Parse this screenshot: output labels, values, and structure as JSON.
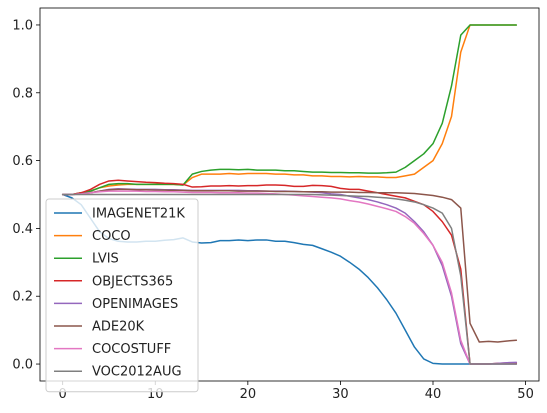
{
  "chart_data": {
    "type": "line",
    "title": "",
    "xlabel": "",
    "ylabel": "",
    "xlim": [
      -2.45,
      51.45
    ],
    "ylim": [
      -0.05,
      1.05
    ],
    "xticks": [
      0,
      10,
      20,
      30,
      40,
      50
    ],
    "yticks": [
      0.0,
      0.2,
      0.4,
      0.6,
      0.8,
      1.0
    ],
    "xtick_labels": [
      "0",
      "10",
      "20",
      "30",
      "40",
      "50"
    ],
    "ytick_labels": [
      "0.0",
      "0.2",
      "0.4",
      "0.6",
      "0.8",
      "1.0"
    ],
    "grid": false,
    "legend_position": "lower-left",
    "x": [
      0,
      1,
      2,
      3,
      4,
      5,
      6,
      7,
      8,
      9,
      10,
      11,
      12,
      13,
      14,
      15,
      16,
      17,
      18,
      19,
      20,
      21,
      22,
      23,
      24,
      25,
      26,
      27,
      28,
      29,
      30,
      31,
      32,
      33,
      34,
      35,
      36,
      37,
      38,
      39,
      40,
      41,
      42,
      43,
      44,
      45,
      46,
      47,
      48,
      49
    ],
    "series": [
      {
        "name": "IMAGENET21K",
        "color": "#1f77b4",
        "values": [
          0.5,
          0.49,
          0.47,
          0.43,
          0.39,
          0.37,
          0.362,
          0.36,
          0.36,
          0.362,
          0.362,
          0.365,
          0.367,
          0.372,
          0.36,
          0.357,
          0.358,
          0.364,
          0.364,
          0.366,
          0.364,
          0.366,
          0.366,
          0.362,
          0.362,
          0.358,
          0.353,
          0.35,
          0.34,
          0.33,
          0.318,
          0.3,
          0.28,
          0.255,
          0.225,
          0.19,
          0.15,
          0.1,
          0.05,
          0.015,
          0.002,
          0.0,
          0.0,
          0.0,
          0.0,
          0.0,
          0.0,
          0.0,
          0.0,
          0.0
        ]
      },
      {
        "name": "COCO",
        "color": "#ff7f0e",
        "values": [
          0.5,
          0.5,
          0.505,
          0.51,
          0.52,
          0.525,
          0.528,
          0.53,
          0.53,
          0.53,
          0.53,
          0.53,
          0.53,
          0.528,
          0.55,
          0.56,
          0.56,
          0.56,
          0.562,
          0.56,
          0.562,
          0.562,
          0.562,
          0.56,
          0.56,
          0.558,
          0.558,
          0.555,
          0.555,
          0.553,
          0.553,
          0.552,
          0.553,
          0.552,
          0.552,
          0.55,
          0.55,
          0.555,
          0.56,
          0.58,
          0.6,
          0.65,
          0.73,
          0.92,
          1.0,
          1.0,
          1.0,
          1.0,
          1.0,
          1.0
        ]
      },
      {
        "name": "LVIS",
        "color": "#2ca02c",
        "values": [
          0.5,
          0.5,
          0.505,
          0.51,
          0.52,
          0.53,
          0.532,
          0.532,
          0.53,
          0.53,
          0.53,
          0.53,
          0.53,
          0.528,
          0.56,
          0.568,
          0.572,
          0.574,
          0.574,
          0.573,
          0.574,
          0.572,
          0.572,
          0.572,
          0.57,
          0.57,
          0.568,
          0.566,
          0.566,
          0.565,
          0.565,
          0.564,
          0.564,
          0.563,
          0.563,
          0.564,
          0.566,
          0.58,
          0.6,
          0.62,
          0.65,
          0.71,
          0.82,
          0.97,
          1.0,
          1.0,
          1.0,
          1.0,
          1.0,
          1.0
        ]
      },
      {
        "name": "OBJECTS365",
        "color": "#d62728",
        "values": [
          0.5,
          0.5,
          0.505,
          0.515,
          0.53,
          0.54,
          0.542,
          0.54,
          0.538,
          0.536,
          0.535,
          0.533,
          0.532,
          0.53,
          0.522,
          0.523,
          0.525,
          0.525,
          0.526,
          0.525,
          0.526,
          0.526,
          0.528,
          0.528,
          0.527,
          0.524,
          0.524,
          0.527,
          0.526,
          0.524,
          0.518,
          0.515,
          0.515,
          0.51,
          0.505,
          0.5,
          0.495,
          0.49,
          0.48,
          0.47,
          0.45,
          0.42,
          0.38,
          0.28,
          0.0,
          0.0,
          0.0,
          0.002,
          0.003,
          0.003
        ]
      },
      {
        "name": "OPENIMAGES",
        "color": "#9467bd",
        "values": [
          0.5,
          0.5,
          0.502,
          0.505,
          0.51,
          0.515,
          0.517,
          0.516,
          0.515,
          0.515,
          0.515,
          0.514,
          0.514,
          0.513,
          0.512,
          0.512,
          0.512,
          0.512,
          0.512,
          0.512,
          0.511,
          0.511,
          0.51,
          0.51,
          0.51,
          0.509,
          0.508,
          0.507,
          0.505,
          0.502,
          0.5,
          0.495,
          0.49,
          0.485,
          0.478,
          0.47,
          0.46,
          0.445,
          0.42,
          0.39,
          0.35,
          0.29,
          0.2,
          0.06,
          0.0,
          0.0,
          0.0,
          0.002,
          0.004,
          0.005
        ]
      },
      {
        "name": "ADE20K",
        "color": "#8c564b",
        "values": [
          0.5,
          0.5,
          0.502,
          0.505,
          0.51,
          0.514,
          0.515,
          0.515,
          0.514,
          0.514,
          0.513,
          0.513,
          0.512,
          0.512,
          0.511,
          0.511,
          0.511,
          0.511,
          0.511,
          0.51,
          0.51,
          0.51,
          0.51,
          0.509,
          0.509,
          0.509,
          0.508,
          0.508,
          0.508,
          0.507,
          0.507,
          0.507,
          0.506,
          0.506,
          0.505,
          0.505,
          0.505,
          0.504,
          0.503,
          0.5,
          0.497,
          0.492,
          0.485,
          0.46,
          0.12,
          0.065,
          0.067,
          0.065,
          0.068,
          0.07
        ]
      },
      {
        "name": "COCOSTUFF",
        "color": "#e377c2",
        "values": [
          0.5,
          0.5,
          0.502,
          0.505,
          0.508,
          0.51,
          0.51,
          0.51,
          0.51,
          0.509,
          0.509,
          0.508,
          0.508,
          0.507,
          0.506,
          0.506,
          0.506,
          0.505,
          0.505,
          0.505,
          0.504,
          0.504,
          0.503,
          0.502,
          0.5,
          0.498,
          0.496,
          0.494,
          0.492,
          0.49,
          0.487,
          0.482,
          0.478,
          0.472,
          0.465,
          0.458,
          0.45,
          0.435,
          0.415,
          0.385,
          0.35,
          0.3,
          0.21,
          0.07,
          0.0,
          0.0,
          0.0,
          0.0,
          0.0,
          0.0
        ]
      },
      {
        "name": "VOC2012AUG",
        "color": "#7f7f7f",
        "values": [
          0.5,
          0.5,
          0.5,
          0.5,
          0.5,
          0.5,
          0.5,
          0.5,
          0.5,
          0.5,
          0.5,
          0.5,
          0.5,
          0.5,
          0.5,
          0.5,
          0.5,
          0.5,
          0.5,
          0.5,
          0.5,
          0.5,
          0.5,
          0.5,
          0.5,
          0.5,
          0.5,
          0.5,
          0.499,
          0.498,
          0.497,
          0.496,
          0.495,
          0.494,
          0.492,
          0.49,
          0.487,
          0.483,
          0.478,
          0.47,
          0.46,
          0.445,
          0.4,
          0.26,
          0.0,
          0.0,
          0.0,
          0.0,
          0.0,
          0.0
        ]
      }
    ]
  }
}
